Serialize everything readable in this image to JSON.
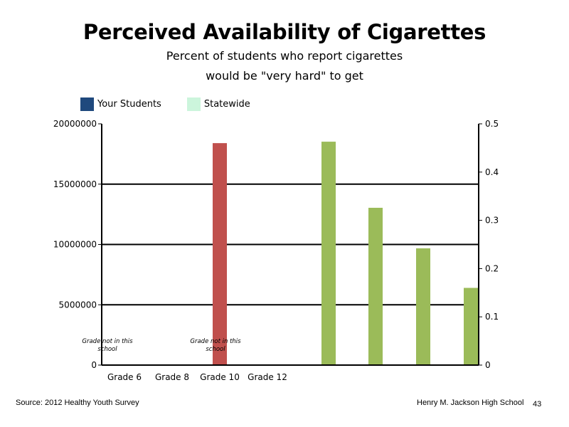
{
  "slide": {
    "source": "Source: 2012 Healthy Youth Survey",
    "school": "Henry M. Jackson High School",
    "page_number": "43"
  },
  "chart_data": {
    "type": "bar",
    "title": "Perceived Availability of Cigarettes",
    "subtitle_lines": [
      "Percent of students who report cigarettes",
      "would be \"very hard\" to get"
    ],
    "legend": [
      {
        "label": "Your Students",
        "color": "#1f497d"
      },
      {
        "label": "Statewide",
        "color": "#ccf5dc"
      }
    ],
    "categories": [
      "Grade 6",
      "Grade 8",
      "Grade 10",
      "Grade 12"
    ],
    "left_axis": {
      "ticks": [
        "0",
        "5000000",
        "10000000",
        "15000000",
        "20000000"
      ],
      "ylim": [
        0,
        20000000
      ]
    },
    "right_axis": {
      "ticks": [
        "0",
        "0.1",
        "0.2",
        "0.3",
        "0.4",
        "0.5"
      ],
      "ylim": [
        0,
        0.5
      ]
    },
    "grid": true,
    "not_in_school_note": "Grade not in this school",
    "not_in_school_categories": [
      "Grade 6",
      "Grade 10"
    ],
    "series": [
      {
        "axis": "left",
        "color": "#c0504d",
        "values": [
          null,
          null,
          18400000,
          null
        ]
      },
      {
        "axis": "right",
        "color": "#9bbb59",
        "values": [
          0.463,
          0.326,
          0.242,
          0.16
        ]
      }
    ]
  }
}
